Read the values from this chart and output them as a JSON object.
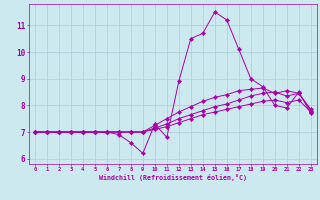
{
  "xlabel": "Windchill (Refroidissement éolien,°C)",
  "background_color": "#cce9f0",
  "grid_color": "#aaccdd",
  "line_color": "#aa00aa",
  "xlim": [
    -0.5,
    23.5
  ],
  "ylim": [
    5.8,
    11.8
  ],
  "xticks": [
    0,
    1,
    2,
    3,
    4,
    5,
    6,
    7,
    8,
    9,
    10,
    11,
    12,
    13,
    14,
    15,
    16,
    17,
    18,
    19,
    20,
    21,
    22,
    23
  ],
  "yticks": [
    6,
    7,
    8,
    9,
    10,
    11
  ],
  "lines": [
    {
      "x": [
        0,
        1,
        2,
        3,
        4,
        5,
        6,
        7,
        8,
        9,
        10,
        11,
        12,
        13,
        14,
        15,
        16,
        17,
        18,
        19,
        20,
        21,
        22,
        23
      ],
      "y": [
        7.0,
        7.0,
        7.0,
        7.0,
        7.0,
        7.0,
        7.0,
        6.9,
        6.6,
        6.2,
        7.3,
        6.8,
        8.9,
        10.5,
        10.7,
        11.5,
        11.2,
        10.1,
        9.0,
        8.7,
        8.0,
        7.9,
        8.5,
        7.7
      ]
    },
    {
      "x": [
        0,
        1,
        2,
        3,
        4,
        5,
        6,
        7,
        8,
        9,
        10,
        11,
        12,
        13,
        14,
        15,
        16,
        17,
        18,
        19,
        20,
        21,
        22,
        23
      ],
      "y": [
        7.0,
        7.0,
        7.0,
        7.0,
        7.0,
        7.0,
        7.0,
        7.0,
        7.0,
        7.0,
        7.15,
        7.3,
        7.5,
        7.65,
        7.8,
        7.95,
        8.05,
        8.2,
        8.35,
        8.45,
        8.5,
        8.35,
        8.45,
        7.8
      ]
    },
    {
      "x": [
        0,
        1,
        2,
        3,
        4,
        5,
        6,
        7,
        8,
        9,
        10,
        11,
        12,
        13,
        14,
        15,
        16,
        17,
        18,
        19,
        20,
        21,
        22,
        23
      ],
      "y": [
        7.0,
        7.0,
        7.0,
        7.0,
        7.0,
        7.0,
        7.0,
        7.0,
        7.0,
        7.0,
        7.25,
        7.5,
        7.75,
        7.95,
        8.15,
        8.3,
        8.4,
        8.55,
        8.6,
        8.65,
        8.45,
        8.55,
        8.45,
        7.85
      ]
    },
    {
      "x": [
        0,
        1,
        2,
        3,
        4,
        5,
        6,
        7,
        8,
        9,
        10,
        11,
        12,
        13,
        14,
        15,
        16,
        17,
        18,
        19,
        20,
        21,
        22,
        23
      ],
      "y": [
        7.0,
        7.0,
        7.0,
        7.0,
        7.0,
        7.0,
        7.0,
        7.0,
        7.0,
        7.0,
        7.1,
        7.2,
        7.35,
        7.5,
        7.65,
        7.75,
        7.85,
        7.95,
        8.05,
        8.15,
        8.2,
        8.1,
        8.2,
        7.75
      ]
    }
  ]
}
